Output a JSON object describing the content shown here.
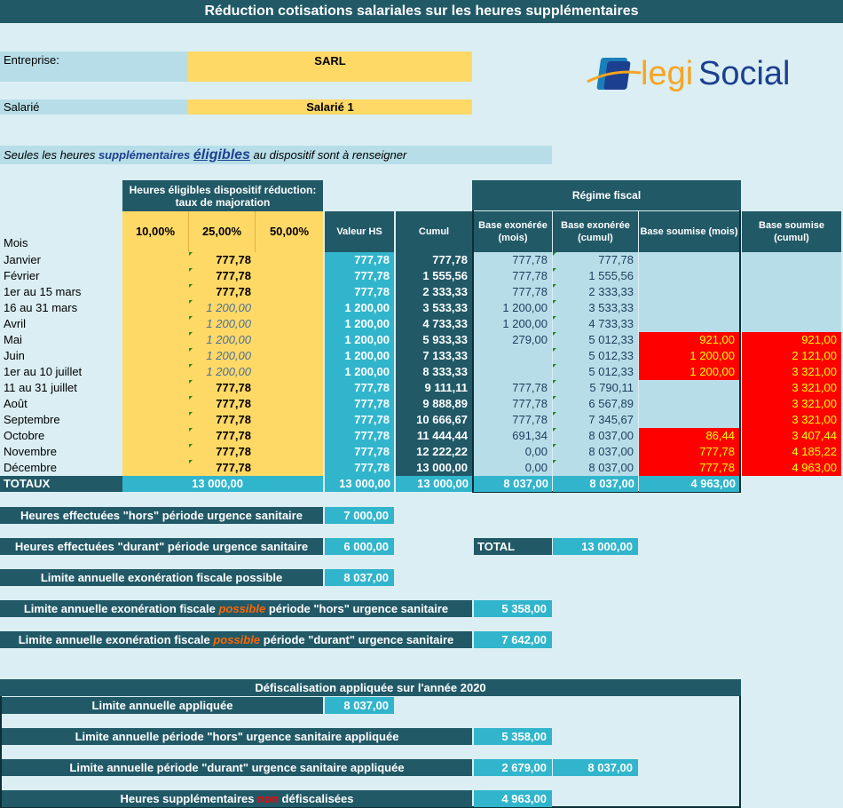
{
  "title": "Réduction cotisations salariales sur les heures supplémentaires",
  "entreprise": {
    "label": "Entreprise:",
    "value": "SARL"
  },
  "salarie": {
    "label": "Salarié",
    "value": "Salarié 1"
  },
  "logo": {
    "part1": "legi",
    "part2": "Social",
    "accent_color": "#f7a421",
    "blue": "#1c3f8f"
  },
  "notice": {
    "part1": "Seules les heures ",
    "part2": "supplémentaires",
    "part3": "éligibles",
    "part4": " au dispositif sont à renseigner"
  },
  "headers": {
    "eligible": "Heures éligibles dispositif réduction: taux de majoration",
    "rate1": "10,00%",
    "rate2": "25,00%",
    "rate3": "50,00%",
    "valeur": "Valeur HS",
    "cumul": "Cumul",
    "regime": "Régime fiscal",
    "bem": "Base exonérée (mois)",
    "bec": "Base exonérée (cumul)",
    "bsm": "Base soumise (mois)",
    "bsc": "Base soumise (cumul)",
    "mois": "Mois"
  },
  "rows": [
    {
      "mois": "Janvier",
      "r25": "777,78",
      "italic": false,
      "valeur": "777,78",
      "cumul": "777,78",
      "bem": "777,78",
      "bec": "777,78",
      "bsm": "",
      "bsc": ""
    },
    {
      "mois": "Février",
      "r25": "777,78",
      "italic": false,
      "valeur": "777,78",
      "cumul": "1 555,56",
      "bem": "777,78",
      "bec": "1 555,56",
      "bsm": "",
      "bsc": ""
    },
    {
      "mois": "1er au 15 mars",
      "r25": "777,78",
      "italic": false,
      "valeur": "777,78",
      "cumul": "2 333,33",
      "bem": "777,78",
      "bec": "2 333,33",
      "bsm": "",
      "bsc": ""
    },
    {
      "mois": "16 au 31 mars",
      "r25": "1 200,00",
      "italic": true,
      "valeur": "1 200,00",
      "cumul": "3 533,33",
      "bem": "1 200,00",
      "bec": "3 533,33",
      "bsm": "",
      "bsc": ""
    },
    {
      "mois": "Avril",
      "r25": "1 200,00",
      "italic": true,
      "valeur": "1 200,00",
      "cumul": "4 733,33",
      "bem": "1 200,00",
      "bec": "4 733,33",
      "bsm": "",
      "bsc": ""
    },
    {
      "mois": "Mai",
      "r25": "1 200,00",
      "italic": true,
      "valeur": "1 200,00",
      "cumul": "5 933,33",
      "bem": "279,00",
      "bec": "5 012,33",
      "bsm": "921,00",
      "bsc": "921,00"
    },
    {
      "mois": "Juin",
      "r25": "1 200,00",
      "italic": true,
      "valeur": "1 200,00",
      "cumul": "7 133,33",
      "bem": "",
      "bec": "5 012,33",
      "bsm": "1 200,00",
      "bsc": "2 121,00"
    },
    {
      "mois": "1er au 10 juillet",
      "r25": "1 200,00",
      "italic": true,
      "valeur": "1 200,00",
      "cumul": "8 333,33",
      "bem": "",
      "bec": "5 012,33",
      "bsm": "1 200,00",
      "bsc": "3 321,00"
    },
    {
      "mois": "11 au 31 juillet",
      "r25": "777,78",
      "italic": false,
      "valeur": "777,78",
      "cumul": "9 111,11",
      "bem": "777,78",
      "bec": "5 790,11",
      "bsm": "",
      "bsc": "3 321,00"
    },
    {
      "mois": "Août",
      "r25": "777,78",
      "italic": false,
      "valeur": "777,78",
      "cumul": "9 888,89",
      "bem": "777,78",
      "bec": "6 567,89",
      "bsm": "",
      "bsc": "3 321,00"
    },
    {
      "mois": "Septembre",
      "r25": "777,78",
      "italic": false,
      "valeur": "777,78",
      "cumul": "10 666,67",
      "bem": "777,78",
      "bec": "7 345,67",
      "bsm": "",
      "bsc": "3 321,00"
    },
    {
      "mois": "Octobre",
      "r25": "777,78",
      "italic": false,
      "valeur": "777,78",
      "cumul": "11 444,44",
      "bem": "691,34",
      "bec": "8 037,00",
      "bsm": "86,44",
      "bsc": "3 407,44"
    },
    {
      "mois": "Novembre",
      "r25": "777,78",
      "italic": false,
      "valeur": "777,78",
      "cumul": "12 222,22",
      "bem": "0,00",
      "bec": "8 037,00",
      "bsm": "777,78",
      "bsc": "4 185,22"
    },
    {
      "mois": "Décembre",
      "r25": "777,78",
      "italic": false,
      "valeur": "777,78",
      "cumul": "13 000,00",
      "bem": "0,00",
      "bec": "8 037,00",
      "bsm": "777,78",
      "bsc": "4 963,00"
    }
  ],
  "totals": {
    "label": "TOTAUX",
    "eligible": "13 000,00",
    "valeur": "13 000,00",
    "cumul": "13 000,00",
    "bem": "8 037,00",
    "bec": "8 037,00",
    "bsm": "4 963,00"
  },
  "summary": {
    "hors_label": "Heures effectuées \"hors\" période urgence sanitaire",
    "hors_value": "7 000,00",
    "durant_label": "Heures effectuées \"durant\" période urgence sanitaire",
    "durant_value": "6 000,00",
    "total_label": "TOTAL",
    "total_value": "13 000,00",
    "limite_label": "Limite annuelle exonération fiscale possible",
    "limite_value": "8 037,00",
    "lh_p1": "Limite annuelle exonération fiscale ",
    "lh_p2": "possible",
    "lh_p3": " période \"hors\" urgence sanitaire",
    "lh_value": "5 358,00",
    "ld_p1": "Limite annuelle exonération fiscale ",
    "ld_p2": "possible",
    "ld_p3": " période \"durant\" urgence sanitaire",
    "ld_value": "7 642,00"
  },
  "defisc": {
    "title": "Défiscalisation appliquée sur l'année 2020",
    "la_label": "Limite annuelle appliquée",
    "la_value": "8 037,00",
    "lh_label": "Limite annuelle période \"hors\" urgence sanitaire appliquée",
    "lh_value": "5 358,00",
    "ld_label": "Limite annuelle période \"durant\" urgence sanitaire appliquée",
    "ld_value": "2 679,00",
    "ld_total": "8 037,00",
    "hs_p1": "Heures supplémentaires ",
    "hs_p2": "non",
    "hs_p3": " défiscalisées",
    "hs_value": "4 963,00"
  }
}
